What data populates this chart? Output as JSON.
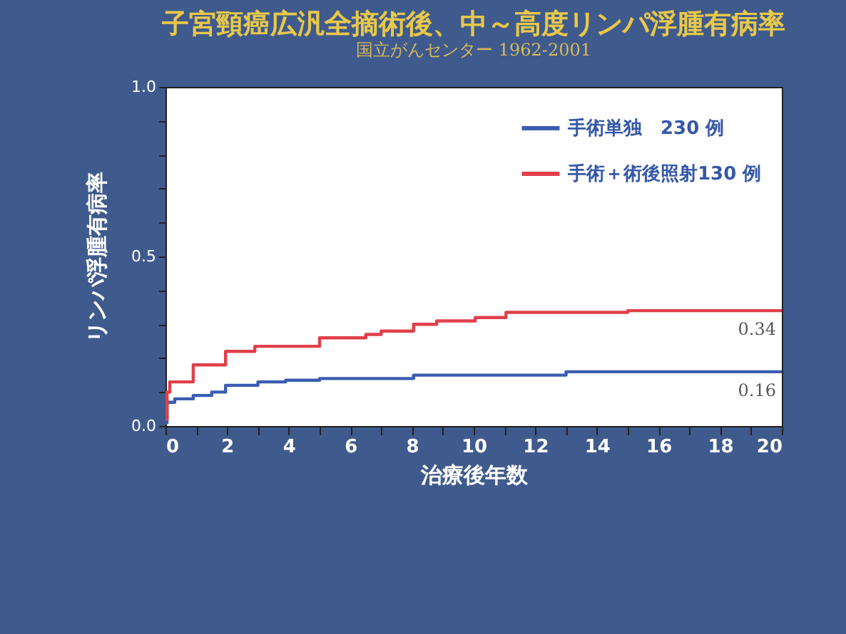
{
  "chart_data": {
    "type": "step",
    "title": "子宮頸癌広汎全摘術後、中～高度リンパ浮腫有病率",
    "subtitle": "国立がんセンター 1962-2001",
    "xlabel": "治療後年数",
    "ylabel": "リンパ浮腫有病率",
    "xlim": [
      0,
      20
    ],
    "xticks": [
      0,
      {
        "value": 1,
        "label": null
      },
      2,
      {
        "value": 3,
        "label": null
      },
      4,
      {
        "value": 5,
        "label": null
      },
      6,
      {
        "value": 7,
        "label": null
      },
      8,
      {
        "value": 9,
        "label": null
      },
      10,
      {
        "value": 11,
        "label": null
      },
      12,
      {
        "value": 13,
        "label": null
      },
      14,
      {
        "value": 15,
        "label": null
      },
      16,
      {
        "value": 17,
        "label": null
      },
      18,
      {
        "value": 19,
        "label": null
      },
      20
    ],
    "ylim": [
      0,
      1
    ],
    "yticks": [
      {
        "value": 0,
        "label": "0.0"
      },
      {
        "value": 0.1,
        "label": null
      },
      {
        "value": 0.2,
        "label": null
      },
      {
        "value": 0.3,
        "label": null
      },
      {
        "value": 0.4,
        "label": null
      },
      {
        "value": 0.5,
        "label": "0.5"
      },
      {
        "value": 0.6,
        "label": null
      },
      {
        "value": 0.7,
        "label": null
      },
      {
        "value": 0.8,
        "label": null
      },
      {
        "value": 0.9,
        "label": null
      },
      {
        "value": 1,
        "label": "1.0"
      }
    ],
    "series": [
      {
        "name": "手術単独　230 例",
        "color": "#3a5db0",
        "x": [
          0,
          0.05,
          0.3,
          0.9,
          1.5,
          1.95,
          3.0,
          3.9,
          5.0,
          8.05,
          13.0,
          20
        ],
        "values": [
          0.01,
          0.07,
          0.08,
          0.09,
          0.1,
          0.12,
          0.13,
          0.135,
          0.14,
          0.15,
          0.16,
          0.16
        ]
      },
      {
        "name": "手術＋術後照射130 例",
        "color": "#e0404a",
        "x": [
          0,
          0.05,
          0.14,
          0.9,
          1.95,
          2.9,
          5.0,
          6.5,
          7.0,
          8.05,
          8.8,
          10.05,
          11.05,
          15.0,
          20
        ],
        "values": [
          0.02,
          0.1,
          0.13,
          0.18,
          0.22,
          0.235,
          0.26,
          0.27,
          0.28,
          0.3,
          0.31,
          0.32,
          0.335,
          0.34,
          0.34
        ]
      }
    ],
    "annotations": [
      {
        "text": "0.34",
        "x": 20,
        "y": 0.34
      },
      {
        "text": "0.16",
        "x": 20,
        "y": 0.16
      }
    ],
    "legend": "top right",
    "grid": false,
    "marker": "none",
    "line_style": "solid"
  }
}
